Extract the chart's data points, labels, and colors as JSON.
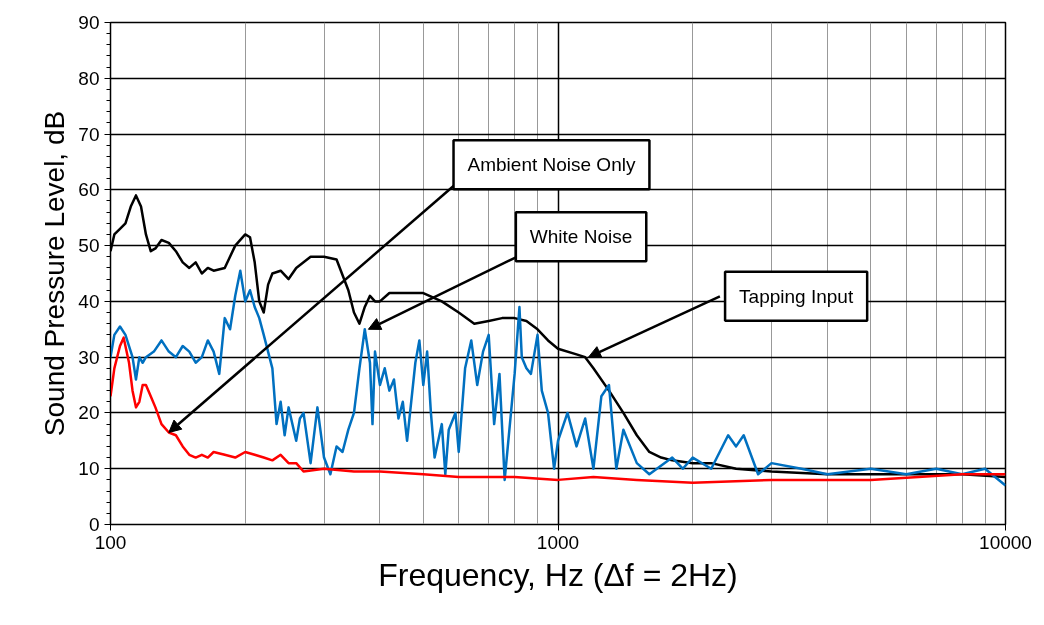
{
  "chart_data": {
    "type": "line",
    "xlabel": "Frequency, Hz (Δf = 2Hz)",
    "ylabel": "Sound Pressure Level, dB",
    "log": "x",
    "xlim": [
      100,
      10000
    ],
    "xticks": [
      100,
      1000,
      10000
    ],
    "ylim": [
      0,
      90
    ],
    "yticks": [
      0,
      10,
      20,
      30,
      40,
      50,
      60,
      70,
      80,
      90
    ],
    "grid": true,
    "marker": "none",
    "line_style": "solid",
    "annotations": [
      {
        "text": "Ambient Noise Only",
        "x": 135,
        "y": 16.5
      },
      {
        "text": "White Noise",
        "x": 377,
        "y": 35
      },
      {
        "text": "Tapping Input",
        "x": 1170,
        "y": 30
      }
    ],
    "series": [
      {
        "color": "#000000",
        "x": [
          100,
          102,
          105,
          108,
          111,
          114,
          117,
          120,
          123,
          126,
          130,
          135,
          140,
          145,
          150,
          155,
          160,
          165,
          170,
          180,
          190,
          200,
          205,
          210,
          215,
          220,
          225,
          230,
          240,
          250,
          260,
          270,
          280,
          300,
          320,
          340,
          350,
          360,
          370,
          380,
          390,
          400,
          420,
          450,
          500,
          550,
          600,
          650,
          700,
          750,
          800,
          850,
          900,
          950,
          1000,
          1100,
          1150,
          1200,
          1300,
          1400,
          1500,
          1600,
          1700,
          1800,
          2000,
          2200,
          2500,
          3000,
          4000,
          5000,
          6000,
          8000,
          10000
        ],
        "values": [
          49,
          52,
          53,
          54,
          57,
          59,
          57,
          52,
          49,
          49.5,
          51,
          50.5,
          49,
          47,
          46,
          47,
          45,
          46,
          45.5,
          46,
          50,
          52,
          51.5,
          47,
          40,
          38,
          43,
          45,
          45.5,
          44,
          46,
          47,
          48,
          48,
          47.5,
          42,
          38,
          36,
          39,
          41,
          40,
          40,
          41.5,
          41.5,
          41.5,
          40,
          38,
          36,
          36.5,
          37,
          37,
          36.5,
          35,
          33,
          31.5,
          30.5,
          30,
          28,
          24,
          20,
          16,
          13,
          12,
          11.5,
          11,
          11,
          10,
          9.5,
          9,
          9,
          9,
          9,
          8.5
        ]
      },
      {
        "color": "#0070c0",
        "x": [
          100,
          102,
          105,
          108,
          110,
          112,
          114,
          116,
          118,
          120,
          125,
          130,
          135,
          140,
          145,
          150,
          155,
          160,
          165,
          170,
          175,
          180,
          185,
          190,
          195,
          200,
          205,
          210,
          215,
          220,
          230,
          235,
          240,
          245,
          250,
          260,
          265,
          270,
          280,
          290,
          300,
          310,
          320,
          330,
          340,
          350,
          360,
          370,
          380,
          385,
          390,
          400,
          410,
          420,
          430,
          440,
          450,
          460,
          480,
          490,
          500,
          510,
          520,
          530,
          550,
          560,
          570,
          590,
          600,
          620,
          640,
          660,
          680,
          700,
          720,
          740,
          760,
          800,
          820,
          830,
          850,
          870,
          900,
          920,
          950,
          980,
          1000,
          1050,
          1100,
          1150,
          1200,
          1250,
          1300,
          1350,
          1400,
          1500,
          1600,
          1800,
          1900,
          2000,
          2200,
          2400,
          2500,
          2600,
          2800,
          3000,
          3500,
          4000,
          5000,
          6000,
          7000,
          8000,
          9000,
          10000
        ],
        "values": [
          30,
          34,
          35.5,
          34,
          32,
          30,
          26,
          30,
          29,
          30,
          31,
          33,
          31,
          30,
          32,
          31,
          29,
          30,
          33,
          31,
          27,
          37,
          35,
          41,
          45.5,
          40,
          42,
          39,
          37,
          34,
          28,
          18,
          22,
          16,
          21,
          15,
          19,
          20,
          11,
          21,
          12,
          9,
          14,
          13,
          17,
          20,
          28,
          35,
          29,
          18,
          31,
          25,
          28,
          24,
          26,
          19,
          22,
          15,
          29,
          33,
          25,
          31,
          20,
          12,
          18,
          9,
          17,
          20,
          13,
          28,
          33,
          25,
          31,
          34,
          18,
          27,
          8,
          27,
          39,
          30,
          28,
          27,
          34,
          24,
          20,
          10,
          15,
          20,
          14,
          19,
          10,
          23,
          25,
          10,
          17,
          11,
          9,
          12,
          10,
          12,
          10,
          16,
          14,
          16,
          9,
          11,
          10,
          9,
          10,
          9,
          10,
          9,
          10,
          7
        ]
      },
      {
        "color": "#ff0000",
        "x": [
          100,
          102,
          105,
          107,
          110,
          112,
          114,
          116,
          118,
          120,
          123,
          126,
          130,
          135,
          140,
          145,
          150,
          155,
          160,
          165,
          170,
          180,
          190,
          200,
          210,
          220,
          230,
          240,
          250,
          260,
          270,
          300,
          350,
          400,
          500,
          600,
          700,
          800,
          1000,
          1200,
          1500,
          2000,
          3000,
          5000,
          8000,
          10000
        ],
        "values": [
          23,
          28,
          32,
          33.5,
          29,
          24,
          21,
          22,
          25,
          25,
          23,
          21,
          18,
          16.5,
          16,
          14,
          12.5,
          12,
          12.5,
          12,
          13,
          12.5,
          12,
          13,
          12.5,
          12,
          11.5,
          12.5,
          11,
          11,
          9.5,
          10,
          9.5,
          9.5,
          9,
          8.5,
          8.5,
          8.5,
          8,
          8.5,
          8,
          7.5,
          8,
          8,
          9,
          9
        ]
      }
    ]
  }
}
